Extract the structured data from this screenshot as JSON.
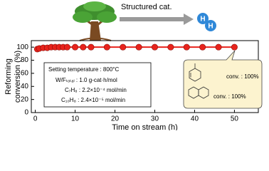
{
  "chart_data": {
    "type": "line",
    "x": [
      0.5,
      1,
      2,
      3,
      4,
      5,
      6,
      7,
      8,
      10,
      12,
      14,
      18,
      22,
      26,
      30,
      34,
      38,
      42,
      46,
      50
    ],
    "values": [
      97,
      98,
      99,
      99,
      100,
      100,
      100,
      100,
      100,
      100,
      100,
      100,
      100,
      100,
      100,
      100,
      100,
      100,
      100,
      100,
      100
    ],
    "color": "#e8231c",
    "xlim": [
      -1,
      56
    ],
    "xticks": [
      0,
      10,
      20,
      30,
      40,
      50
    ],
    "ylim": [
      0,
      110
    ],
    "yticks": [
      0,
      20,
      40,
      60,
      80,
      100
    ],
    "xlabel": "Time on stream (h)",
    "ylabel": [
      "Reforming",
      "conversion (%)"
    ]
  },
  "header": {
    "arrow_label": "Structured cat.",
    "atoms": [
      "H",
      "H"
    ]
  },
  "settings": [
    "Setting temperature : 800°C",
    "W/Fₜₒₜₐₗ : 1.0 g-cat·h/mol",
    "C₇H₈ : 2.2×10⁻⁴ mol/min",
    "C₁₀H₈ : 2.4×10⁻⁵ mol/min"
  ],
  "callout": [
    "conv. : 100%",
    "conv. : 100%"
  ]
}
